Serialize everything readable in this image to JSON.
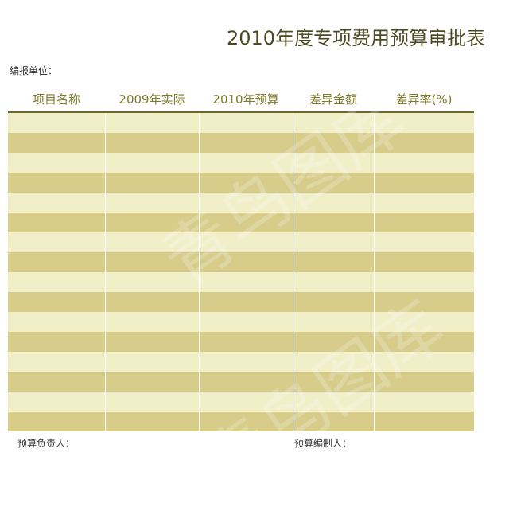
{
  "title": "2010年度专项费用预算审批表",
  "unit_label": "编报单位：",
  "columns": [
    "项目名称",
    "2009年实际",
    "2010年预算",
    "差异金额",
    "差异率(%)"
  ],
  "rows": [
    [
      "",
      "",
      "",
      "",
      ""
    ],
    [
      "",
      "",
      "",
      "",
      ""
    ],
    [
      "",
      "",
      "",
      "",
      ""
    ],
    [
      "",
      "",
      "",
      "",
      ""
    ],
    [
      "",
      "",
      "",
      "",
      ""
    ],
    [
      "",
      "",
      "",
      "",
      ""
    ],
    [
      "",
      "",
      "",
      "",
      ""
    ],
    [
      "",
      "",
      "",
      "",
      ""
    ],
    [
      "",
      "",
      "",
      "",
      ""
    ],
    [
      "",
      "",
      "",
      "",
      ""
    ],
    [
      "",
      "",
      "",
      "",
      ""
    ],
    [
      "",
      "",
      "",
      "",
      ""
    ],
    [
      "",
      "",
      "",
      "",
      ""
    ],
    [
      "",
      "",
      "",
      "",
      ""
    ],
    [
      "",
      "",
      "",
      "",
      ""
    ],
    [
      "",
      "",
      "",
      "",
      ""
    ]
  ],
  "footer": {
    "budget_owner_label": "预算负责人：",
    "budget_preparer_label": "预算编制人："
  },
  "colors": {
    "row_light": "#f0efc8",
    "row_dark": "#d7cc8a",
    "header_text": "#7f7a28",
    "rule": "#6b6830"
  },
  "watermark": "青鸟图库"
}
